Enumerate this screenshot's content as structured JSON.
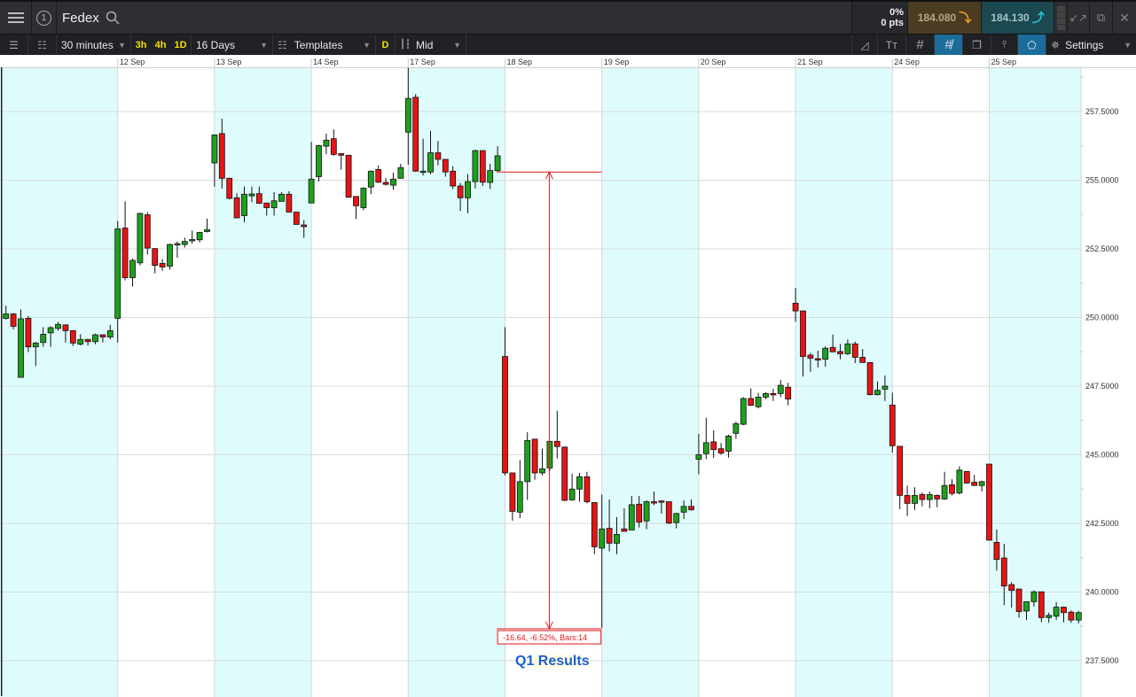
{
  "header": {
    "menu_icon": "hamburger-icon",
    "window_number": "1",
    "title": "Fedex",
    "search_icon": "search-icon",
    "change_pct": "0%",
    "change_pts": "0 pts",
    "sell_price": "184.080",
    "buy_price": "184.130",
    "sell_color": "#4a3b22",
    "buy_color": "#1c4850"
  },
  "toolbar": {
    "interval": "30 minutes",
    "quick": [
      "3h",
      "4h",
      "1D"
    ],
    "range": "16 Days",
    "templates": "Templates",
    "d_label": "D",
    "price_type": "Mid",
    "settings": "Settings"
  },
  "chart_data": {
    "type": "candlestick",
    "instrument": "Fedex",
    "interval": "30 minutes",
    "ylim": [
      236.5,
      259.5
    ],
    "ytick_labels": [
      "257.5000",
      "255.0000",
      "252.5000",
      "250.0000",
      "247.5000",
      "245.0000",
      "242.5000",
      "240.0000",
      "237.5000"
    ],
    "ticks": [
      257.5,
      255,
      252.5,
      250,
      247.5,
      245,
      242.5,
      240,
      237.5
    ],
    "colors": {
      "up": "#1ea01e",
      "down": "#e81414",
      "band": "#dffcfd"
    },
    "candle_format": [
      "open",
      "high",
      "low",
      "close"
    ],
    "sessions": [
      {
        "date": "",
        "candles": [
          [
            249.97,
            250.43,
            249.93,
            250.13
          ],
          [
            250.13,
            250.16,
            249.57,
            249.68
          ],
          [
            247.82,
            250.29,
            247.82,
            249.95
          ],
          [
            249.97,
            250.06,
            248.74,
            248.93
          ],
          [
            248.93,
            249.11,
            248.23,
            249.07
          ],
          [
            249.09,
            249.65,
            248.93,
            249.39
          ],
          [
            249.44,
            249.68,
            248.93,
            249.63
          ],
          [
            249.6,
            249.84,
            249.52,
            249.75
          ],
          [
            249.73,
            249.75,
            249.09,
            249.52
          ],
          [
            249.52,
            249.54,
            248.96,
            249.07
          ],
          [
            249.03,
            249.39,
            248.98,
            249.2
          ],
          [
            249.2,
            249.22,
            248.98,
            249.12
          ],
          [
            249.12,
            249.41,
            249.03,
            249.37
          ],
          [
            249.37,
            249.39,
            249.09,
            249.29
          ],
          [
            249.29,
            249.73,
            249.2,
            249.52
          ]
        ]
      },
      {
        "date": "12 Sep",
        "candles": [
          [
            249.97,
            253.52,
            249.09,
            253.23
          ],
          [
            253.26,
            254.23,
            251.35,
            251.45
          ],
          [
            251.45,
            252.15,
            251.13,
            252.08
          ],
          [
            251.99,
            253.82,
            251.9,
            253.79
          ],
          [
            253.74,
            253.84,
            252.29,
            252.53
          ],
          [
            252.51,
            252.53,
            251.61,
            251.9
          ],
          [
            251.97,
            252.13,
            251.7,
            251.84
          ],
          [
            251.87,
            252.69,
            251.74,
            252.66
          ],
          [
            252.66,
            252.77,
            252.18,
            252.69
          ],
          [
            252.66,
            252.91,
            252.55,
            252.77
          ],
          [
            252.79,
            253.17,
            252.69,
            252.84
          ],
          [
            252.83,
            253.12,
            252.74,
            253.1
          ],
          [
            253.13,
            253.6,
            253.1,
            253.2
          ]
        ]
      },
      {
        "date": "13 Sep",
        "candles": [
          [
            255.63,
            256.67,
            254.77,
            256.65
          ],
          [
            256.7,
            257.24,
            254.7,
            255.07
          ],
          [
            255.07,
            255.09,
            254.3,
            254.34
          ],
          [
            254.36,
            254.52,
            253.63,
            253.63
          ],
          [
            253.71,
            254.77,
            253.47,
            254.49
          ],
          [
            254.43,
            254.77,
            254.2,
            254.5
          ],
          [
            254.51,
            254.77,
            254.14,
            254.16
          ],
          [
            254.17,
            254.17,
            253.71,
            254.0
          ],
          [
            254.0,
            254.57,
            253.71,
            254.25
          ],
          [
            254.23,
            254.57,
            254.23,
            254.49
          ],
          [
            254.49,
            254.6,
            253.84,
            253.84
          ],
          [
            253.84,
            253.84,
            253.39,
            253.39
          ],
          [
            253.37,
            253.55,
            252.9,
            253.31
          ]
        ]
      },
      {
        "date": "14 Sep",
        "candles": [
          [
            254.17,
            256.4,
            254.17,
            255.04
          ],
          [
            255.13,
            256.29,
            254.95,
            256.26
          ],
          [
            256.24,
            256.7,
            255.95,
            256.46
          ],
          [
            256.51,
            256.85,
            255.89,
            255.94
          ],
          [
            255.97,
            255.99,
            255.38,
            255.91
          ],
          [
            255.91,
            255.91,
            254.36,
            254.38
          ],
          [
            254.41,
            254.41,
            253.59,
            254.07
          ],
          [
            254.0,
            254.74,
            253.91,
            254.71
          ],
          [
            254.75,
            255.35,
            254.49,
            255.33
          ],
          [
            255.39,
            255.54,
            254.9,
            254.93
          ],
          [
            254.92,
            255.08,
            254.81,
            254.85
          ],
          [
            254.82,
            255.27,
            254.65,
            255.04
          ],
          [
            255.07,
            255.6,
            255.06,
            255.46
          ]
        ]
      },
      {
        "date": "17 Sep",
        "candles": [
          [
            256.75,
            259.09,
            255.56,
            257.98
          ],
          [
            258.02,
            258.14,
            255.31,
            255.33
          ],
          [
            255.31,
            256.51,
            255.17,
            255.33
          ],
          [
            255.3,
            256.8,
            255.22,
            256.0
          ],
          [
            256.0,
            256.43,
            255.54,
            255.76
          ],
          [
            255.76,
            255.76,
            255.13,
            255.3
          ],
          [
            255.33,
            255.51,
            254.68,
            254.79
          ],
          [
            254.79,
            254.9,
            253.88,
            254.36
          ],
          [
            254.36,
            255.22,
            253.8,
            254.95
          ],
          [
            254.95,
            256.11,
            254.7,
            256.08
          ],
          [
            256.08,
            256.08,
            254.79,
            254.93
          ],
          [
            254.92,
            255.6,
            254.68,
            255.35
          ],
          [
            255.35,
            256.24,
            255.31,
            255.89
          ]
        ]
      },
      {
        "date": "18 Sep",
        "candles": [
          [
            248.58,
            249.65,
            244.25,
            244.34
          ],
          [
            244.34,
            244.34,
            242.6,
            242.94
          ],
          [
            242.91,
            244.81,
            242.69,
            244.02
          ],
          [
            244.02,
            245.82,
            243.36,
            245.52
          ],
          [
            245.57,
            245.57,
            244.09,
            244.34
          ],
          [
            244.34,
            245.22,
            244.25,
            244.49
          ],
          [
            244.52,
            245.49,
            244.41,
            245.49
          ],
          [
            245.49,
            246.6,
            244.87,
            245.3
          ],
          [
            245.28,
            245.3,
            243.31,
            243.34
          ],
          [
            243.36,
            244.31,
            243.32,
            243.75
          ],
          [
            243.75,
            244.34,
            243.29,
            244.2
          ],
          [
            244.2,
            244.38,
            243.23,
            243.29
          ],
          [
            243.26,
            243.26,
            241.38,
            241.65
          ]
        ]
      },
      {
        "date": "19 Sep",
        "candles": [
          [
            241.6,
            243.55,
            238.7,
            242.3
          ],
          [
            242.32,
            243.37,
            241.48,
            241.78
          ],
          [
            241.78,
            242.73,
            241.38,
            242.1
          ],
          [
            242.3,
            243.05,
            242.21,
            242.21
          ],
          [
            242.26,
            243.5,
            242.26,
            243.18
          ],
          [
            243.2,
            243.5,
            242.35,
            242.55
          ],
          [
            242.59,
            243.34,
            242.29,
            243.29
          ],
          [
            243.29,
            243.66,
            243.16,
            243.26
          ],
          [
            243.32,
            243.32,
            242.86,
            243.3
          ],
          [
            243.29,
            243.29,
            242.48,
            242.51
          ],
          [
            242.53,
            242.89,
            242.32,
            242.86
          ],
          [
            242.91,
            243.34,
            242.66,
            243.12
          ],
          [
            243.12,
            243.37,
            242.96,
            243.0
          ]
        ]
      },
      {
        "date": "20 Sep",
        "candles": [
          [
            244.84,
            245.76,
            244.29,
            245.0
          ],
          [
            245.04,
            246.35,
            244.84,
            245.44
          ],
          [
            245.47,
            245.89,
            244.88,
            245.19
          ],
          [
            245.22,
            245.43,
            245.0,
            245.06
          ],
          [
            245.13,
            245.73,
            244.9,
            245.68
          ],
          [
            245.78,
            246.21,
            245.58,
            246.13
          ],
          [
            246.11,
            247.1,
            246.08,
            247.05
          ],
          [
            247.05,
            247.42,
            246.78,
            246.8
          ],
          [
            246.75,
            247.26,
            246.69,
            247.1
          ],
          [
            247.1,
            247.28,
            247.03,
            247.23
          ],
          [
            247.23,
            247.4,
            246.96,
            247.21
          ],
          [
            247.23,
            247.73,
            247.1,
            247.53
          ],
          [
            247.46,
            247.62,
            246.8,
            247.03
          ]
        ]
      },
      {
        "date": "21 Sep",
        "candles": [
          [
            250.52,
            251.08,
            249.84,
            250.24
          ],
          [
            250.24,
            250.24,
            247.85,
            248.58
          ],
          [
            248.63,
            248.71,
            248.02,
            248.52
          ],
          [
            248.5,
            248.79,
            248.18,
            248.48
          ],
          [
            248.48,
            248.95,
            248.21,
            248.88
          ],
          [
            248.91,
            249.38,
            248.74,
            248.75
          ],
          [
            248.76,
            249.04,
            248.48,
            248.68
          ],
          [
            248.68,
            249.2,
            248.64,
            249.04
          ],
          [
            249.04,
            249.12,
            248.34,
            248.55
          ],
          [
            248.55,
            248.85,
            248.36,
            248.36
          ],
          [
            248.36,
            248.36,
            247.16,
            247.19
          ],
          [
            247.19,
            247.67,
            247.16,
            247.35
          ],
          [
            247.39,
            247.89,
            246.96,
            247.5
          ]
        ]
      },
      {
        "date": "24 Sep",
        "candles": [
          [
            246.81,
            247.26,
            245.08,
            245.33
          ],
          [
            245.31,
            245.31,
            243.02,
            243.52
          ],
          [
            243.52,
            243.88,
            242.77,
            243.23
          ],
          [
            243.23,
            243.82,
            242.99,
            243.52
          ],
          [
            243.55,
            243.63,
            243.12,
            243.37
          ],
          [
            243.37,
            243.66,
            243.05,
            243.55
          ],
          [
            243.52,
            243.55,
            243.09,
            243.39
          ],
          [
            243.39,
            244.38,
            243.36,
            243.88
          ],
          [
            243.91,
            244.11,
            243.52,
            243.59
          ],
          [
            243.61,
            244.58,
            243.55,
            244.44
          ],
          [
            244.39,
            244.41,
            243.95,
            243.97
          ],
          [
            244.0,
            244.27,
            243.88,
            243.88
          ],
          [
            243.88,
            244.06,
            243.66,
            244.02
          ]
        ]
      },
      {
        "date": "25 Sep",
        "candles": [
          [
            244.66,
            244.66,
            241.89,
            241.89
          ],
          [
            241.81,
            242.28,
            240.78,
            241.19
          ],
          [
            241.24,
            241.76,
            239.52,
            240.22
          ],
          [
            240.27,
            240.36,
            239.43,
            240.06
          ],
          [
            240.11,
            240.11,
            239.07,
            239.29
          ],
          [
            239.31,
            239.65,
            238.98,
            239.65
          ],
          [
            239.65,
            240.06,
            239.47,
            240.01
          ],
          [
            240.01,
            240.01,
            238.9,
            239.07
          ],
          [
            239.07,
            239.25,
            238.88,
            239.15
          ],
          [
            239.12,
            239.63,
            238.98,
            239.45
          ],
          [
            239.45,
            239.47,
            238.9,
            239.25
          ],
          [
            239.27,
            239.33,
            238.88,
            238.98
          ],
          [
            238.98,
            239.31,
            238.86,
            239.25
          ]
        ]
      }
    ],
    "measure": {
      "from_price": 255.3,
      "to_price": 238.66,
      "from_session": "17 Sep",
      "from_bar": 13,
      "to_session": "19 Sep",
      "to_bar": 1,
      "label": "-16.64, -6.52%, Bars:14",
      "color": "#e01818"
    },
    "annotation": {
      "text": "Q1 Results",
      "color": "#1a5fd6"
    }
  }
}
